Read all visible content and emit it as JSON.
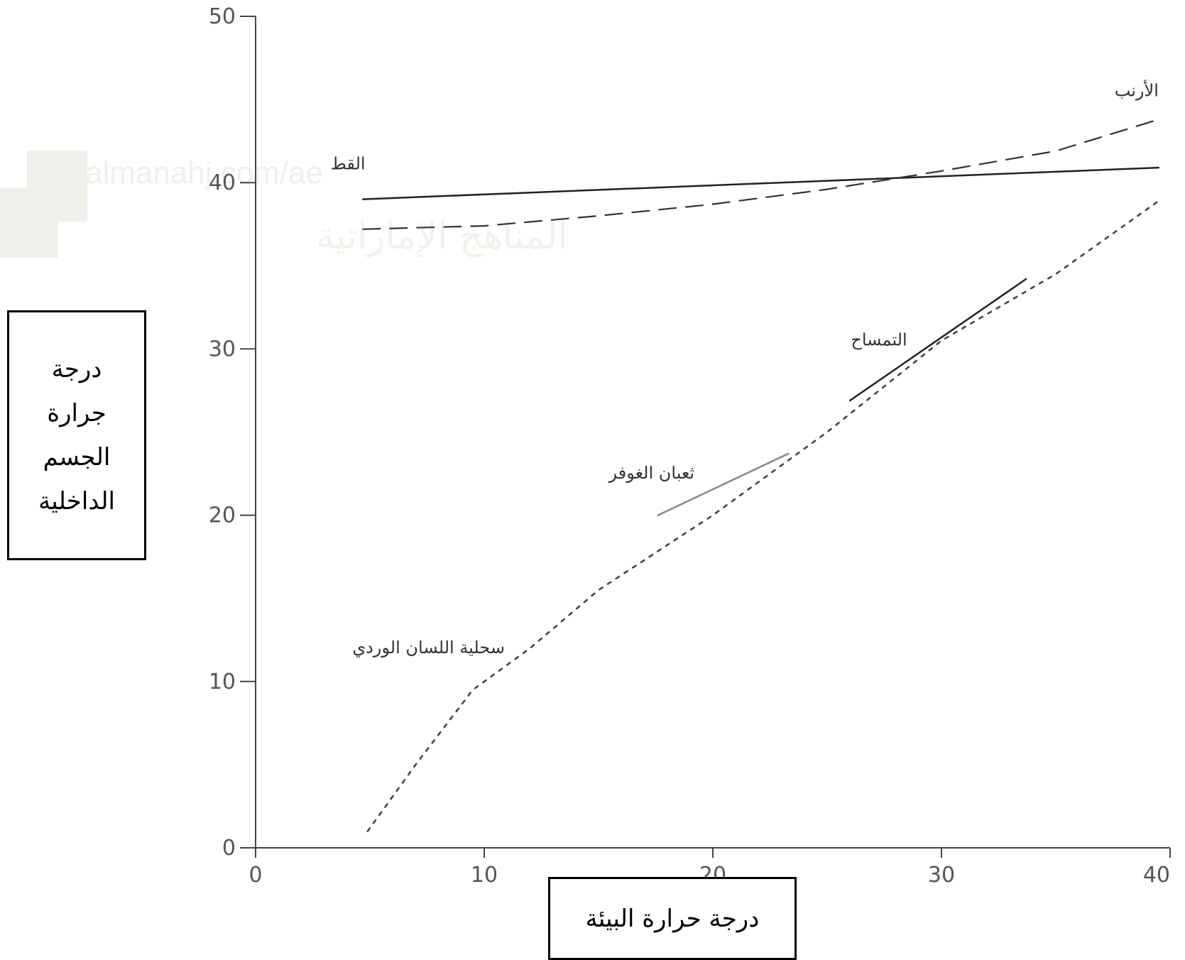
{
  "chart_data": {
    "type": "line",
    "xlabel": "درجة حرارة البيئة",
    "ylabel_lines": [
      "درجة",
      "جرارة",
      "الجسم",
      "الداخلية"
    ],
    "xlim": [
      0,
      40
    ],
    "ylim": [
      0,
      50
    ],
    "x_ticks": [
      "0",
      "10",
      "20",
      "30",
      "40"
    ],
    "y_ticks": [
      "0",
      "10",
      "20",
      "30",
      "40",
      "50"
    ],
    "grid": false,
    "series": [
      {
        "name": "القط",
        "style": "solid",
        "color": "#222222",
        "x": [
          4.7,
          39.5
        ],
        "y": [
          39,
          40.9
        ]
      },
      {
        "name": "الأرنب",
        "style": "dashed",
        "color": "#333333",
        "x": [
          4.7,
          10,
          15,
          20,
          25,
          30,
          35,
          39.5
        ],
        "y": [
          37.2,
          37.4,
          38,
          38.7,
          39.6,
          40.7,
          41.9,
          43.8
        ]
      },
      {
        "name": "التمساح",
        "style": "solid",
        "color": "#222222",
        "x": [
          26,
          33.7
        ],
        "y": [
          26.9,
          34.2
        ]
      },
      {
        "name": "ثعبان الغوفر",
        "style": "solid",
        "color": "#888888",
        "x": [
          17.6,
          23.3
        ],
        "y": [
          20,
          23.7
        ]
      },
      {
        "name": "سحلية اللسان الوردي",
        "style": "dotted",
        "color": "#444444",
        "x": [
          4.9,
          7,
          9.5,
          12,
          15,
          20,
          25,
          30,
          35,
          39.5
        ],
        "y": [
          1,
          5,
          9.5,
          12,
          15.5,
          20,
          25,
          30.5,
          34.5,
          38.9
        ]
      }
    ]
  },
  "watermark": {
    "text": "المناهج الإماراتية",
    "url": "almanahj.com/ae"
  }
}
